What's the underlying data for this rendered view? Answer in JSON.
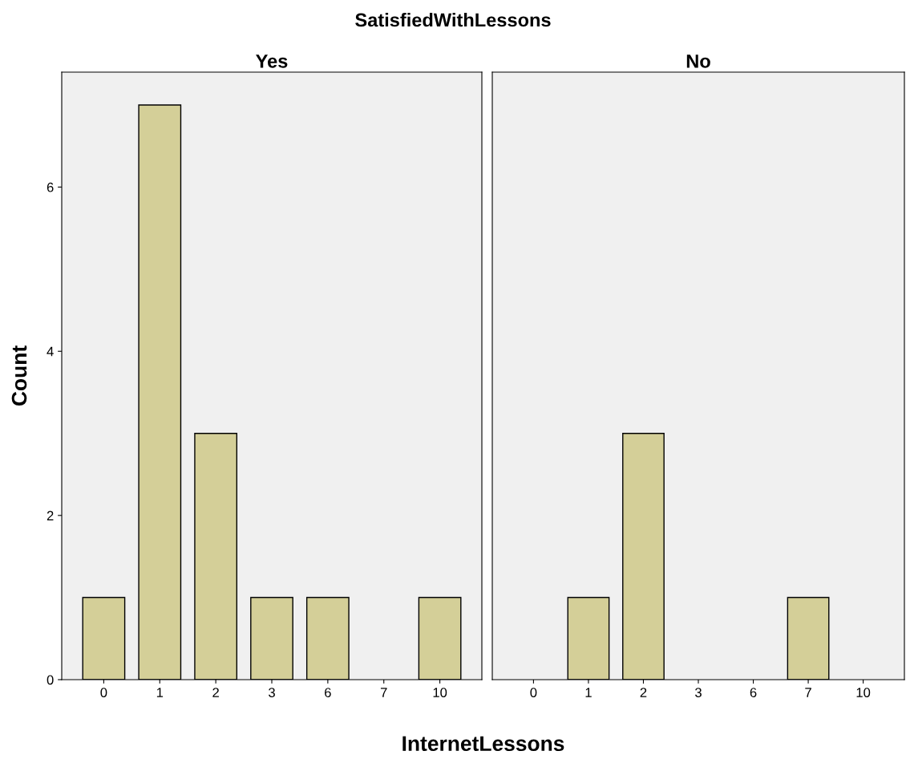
{
  "chart_data": [
    {
      "type": "bar",
      "title": "SatisfiedWithLessons",
      "subtitle": "Yes",
      "xlabel": "InternetLessons",
      "ylabel": "Count",
      "categories": [
        "0",
        "1",
        "2",
        "3",
        "6",
        "7",
        "10"
      ],
      "values": [
        1,
        7,
        3,
        1,
        1,
        null,
        1
      ],
      "color": "#d4cf98",
      "ylim": [
        0,
        7.4
      ],
      "yticks": [
        0,
        2,
        4,
        6
      ],
      "grid": false
    },
    {
      "type": "bar",
      "subtitle": "No",
      "categories": [
        "0",
        "1",
        "2",
        "3",
        "6",
        "7",
        "10"
      ],
      "values": [
        null,
        1,
        3,
        null,
        null,
        1,
        null
      ],
      "color": "#d4cf98",
      "ylim": [
        0,
        7.4
      ],
      "yticks": [
        0,
        2,
        4,
        6
      ],
      "grid": false,
      "tick_labels": "x"
    }
  ]
}
